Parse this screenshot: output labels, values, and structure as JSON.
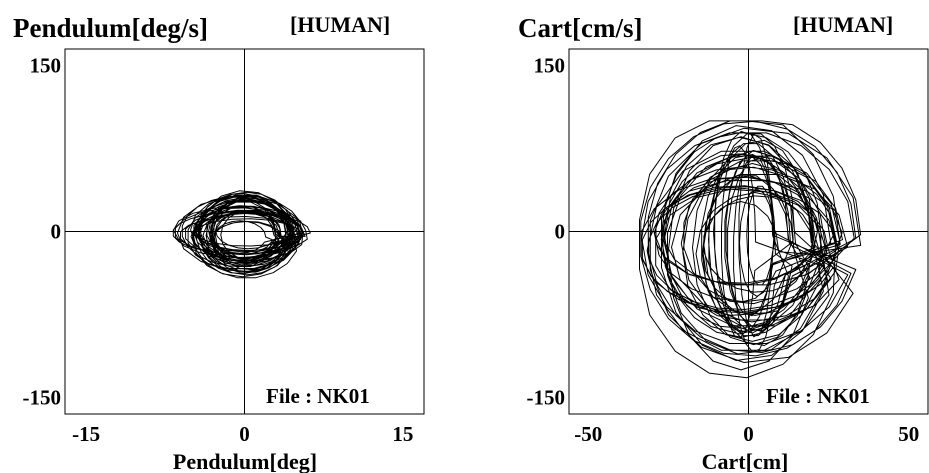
{
  "chart_data": [
    {
      "type": "line",
      "title": "Pendulum[deg/s]",
      "tag": "[HUMAN]",
      "xlabel": "Pendulum[deg]",
      "xlim": [
        -17,
        17
      ],
      "ylim": [
        -165,
        165
      ],
      "xticks": [
        {
          "value": -15,
          "label": "-15"
        },
        {
          "value": 0,
          "label": "0"
        },
        {
          "value": 15,
          "label": "15"
        }
      ],
      "yticks": [
        {
          "value": 150,
          "label": "150"
        },
        {
          "value": 0,
          "label": "0"
        },
        {
          "value": -150,
          "label": "-150"
        }
      ],
      "annotation": "File : NK01",
      "grid": false,
      "phase_portrait": {
        "center": [
          0,
          -2
        ],
        "x_amplitude_range": [
          2,
          6.6
        ],
        "y_amplitude_range": [
          12,
          44
        ],
        "x_range": [
          -7,
          7
        ],
        "y_range": [
          -52,
          47
        ],
        "cycles": 42
      }
    },
    {
      "type": "line",
      "title": "Cart[cm/s]",
      "tag": "[HUMAN]",
      "xlabel": "Cart[cm]",
      "xlim": [
        -56,
        56
      ],
      "ylim": [
        -165,
        165
      ],
      "xticks": [
        {
          "value": -50,
          "label": "-50"
        },
        {
          "value": 0,
          "label": "0"
        },
        {
          "value": 50,
          "label": "50"
        }
      ],
      "yticks": [
        {
          "value": 150,
          "label": "150"
        },
        {
          "value": 0,
          "label": "0"
        },
        {
          "value": -150,
          "label": "-150"
        }
      ],
      "annotation": "File : NK01",
      "grid": false,
      "phase_portrait": {
        "center": [
          0,
          -10
        ],
        "x_amplitude_range": [
          4,
          34
        ],
        "y_amplitude_range": [
          40,
          125
        ],
        "x_range": [
          -34,
          35
        ],
        "y_range": [
          -135,
          100
        ],
        "cycles": 45
      }
    }
  ]
}
